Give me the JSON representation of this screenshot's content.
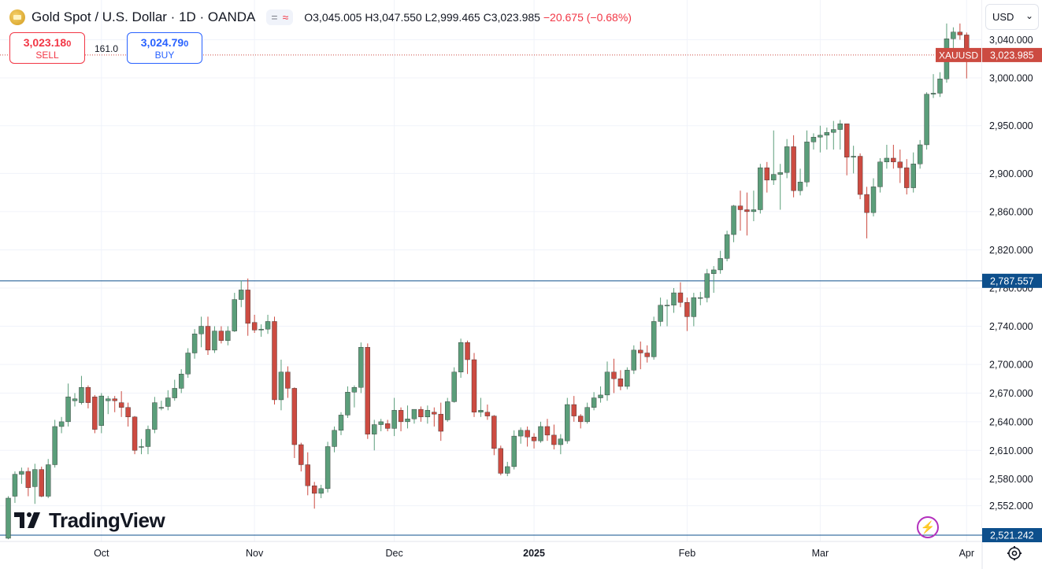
{
  "header": {
    "title": "Gold Spot / U.S. Dollar · 1D · OANDA",
    "pill_a": "=",
    "pill_b": "≈",
    "open": "O3,045.005",
    "high": "H3,047.550",
    "low": "L2,999.465",
    "close": "C3,023.985",
    "change": "−20.675 (−0.68%)"
  },
  "trade": {
    "sell_price_main": "3,023.18",
    "sell_price_small": "0",
    "sell_label": "SELL",
    "spread": "161.0",
    "buy_price_main": "3,024.79",
    "buy_price_small": "0",
    "buy_label": "BUY"
  },
  "currency": {
    "value": "USD",
    "chevron": "⌄"
  },
  "brand": {
    "name": "TradingView"
  },
  "icons": {
    "currency_chevron": "chevron-down-icon",
    "settings": "gear-icon",
    "flash": "lightning-icon",
    "symbol": "gold-bar-icon",
    "logo": "tradingview-logo"
  },
  "colors": {
    "up": "#5b9e7a",
    "down": "#cc4b41",
    "price_label": "#cc4b41",
    "hline": "#0d4f8c",
    "text": "#131722"
  },
  "chart_data": {
    "type": "candlestick",
    "symbol": "XAUUSD",
    "last_price": 3023.985,
    "last_price_label": "3,023.985",
    "ylim": [
      2521.242,
      3061
    ],
    "y_ticks": [
      2552,
      2580,
      2610,
      2640,
      2670,
      2700,
      2740,
      2780,
      2820,
      2860,
      2900,
      2950,
      3000,
      3040
    ],
    "y_tick_labels": [
      "2,552.000",
      "2,580.000",
      "2,610.000",
      "2,640.000",
      "2,670.000",
      "2,700.000",
      "2,740.000",
      "2,780.000",
      "2,820.000",
      "2,860.000",
      "2,900.000",
      "2,950.000",
      "3,000.000",
      "3,040.000"
    ],
    "x_labels": [
      {
        "label": "Oct",
        "index": 14,
        "bold": false
      },
      {
        "label": "Nov",
        "index": 37,
        "bold": false
      },
      {
        "label": "Dec",
        "index": 58,
        "bold": false
      },
      {
        "label": "2025",
        "index": 79,
        "bold": true
      },
      {
        "label": "Feb",
        "index": 102,
        "bold": false
      },
      {
        "label": "Mar",
        "index": 122,
        "bold": false
      },
      {
        "label": "Apr",
        "index": 144,
        "bold": false
      }
    ],
    "horizontal_lines": [
      {
        "value": 2787.557,
        "label": "2,787.557"
      },
      {
        "value": 2521.242,
        "label": "2,521.242"
      }
    ],
    "candles": [
      [
        2518,
        2562,
        2517,
        2560
      ],
      [
        2562,
        2588,
        2555,
        2585
      ],
      [
        2585,
        2592,
        2575,
        2588
      ],
      [
        2588,
        2592,
        2562,
        2571
      ],
      [
        2572,
        2596,
        2554,
        2590
      ],
      [
        2590,
        2593,
        2561,
        2562
      ],
      [
        2562,
        2601,
        2560,
        2595
      ],
      [
        2595,
        2642,
        2592,
        2635
      ],
      [
        2635,
        2645,
        2628,
        2640
      ],
      [
        2640,
        2680,
        2635,
        2666
      ],
      [
        2662,
        2670,
        2656,
        2664
      ],
      [
        2660,
        2688,
        2658,
        2676
      ],
      [
        2676,
        2678,
        2654,
        2660
      ],
      [
        2666,
        2668,
        2628,
        2632
      ],
      [
        2636,
        2670,
        2628,
        2667
      ],
      [
        2662,
        2667,
        2648,
        2664
      ],
      [
        2664,
        2667,
        2650,
        2662
      ],
      [
        2660,
        2672,
        2645,
        2655
      ],
      [
        2655,
        2660,
        2635,
        2645
      ],
      [
        2645,
        2646,
        2606,
        2610
      ],
      [
        2614,
        2622,
        2606,
        2614
      ],
      [
        2614,
        2636,
        2606,
        2632
      ],
      [
        2632,
        2666,
        2628,
        2660
      ],
      [
        2655,
        2662,
        2652,
        2655
      ],
      [
        2656,
        2673,
        2652,
        2665
      ],
      [
        2665,
        2684,
        2662,
        2675
      ],
      [
        2675,
        2695,
        2670,
        2690
      ],
      [
        2690,
        2717,
        2686,
        2712
      ],
      [
        2712,
        2737,
        2706,
        2732
      ],
      [
        2732,
        2750,
        2718,
        2740
      ],
      [
        2740,
        2750,
        2710,
        2715
      ],
      [
        2715,
        2740,
        2712,
        2735
      ],
      [
        2735,
        2740,
        2722,
        2725
      ],
      [
        2725,
        2740,
        2720,
        2735
      ],
      [
        2735,
        2775,
        2734,
        2768
      ],
      [
        2768,
        2788,
        2760,
        2778
      ],
      [
        2778,
        2790,
        2730,
        2743
      ],
      [
        2744,
        2752,
        2733,
        2736
      ],
      [
        2736,
        2742,
        2729,
        2737
      ],
      [
        2737,
        2752,
        2732,
        2745
      ],
      [
        2745,
        2750,
        2658,
        2663
      ],
      [
        2663,
        2705,
        2652,
        2692
      ],
      [
        2692,
        2698,
        2665,
        2675
      ],
      [
        2675,
        2676,
        2602,
        2616
      ],
      [
        2616,
        2618,
        2588,
        2595
      ],
      [
        2595,
        2608,
        2563,
        2573
      ],
      [
        2573,
        2577,
        2549,
        2565
      ],
      [
        2565,
        2574,
        2560,
        2570
      ],
      [
        2570,
        2619,
        2566,
        2614
      ],
      [
        2614,
        2635,
        2608,
        2631
      ],
      [
        2631,
        2650,
        2626,
        2647
      ],
      [
        2647,
        2677,
        2644,
        2671
      ],
      [
        2671,
        2678,
        2655,
        2676
      ],
      [
        2676,
        2723,
        2670,
        2718
      ],
      [
        2718,
        2722,
        2622,
        2627
      ],
      [
        2627,
        2642,
        2610,
        2637
      ],
      [
        2637,
        2643,
        2630,
        2640
      ],
      [
        2638,
        2642,
        2630,
        2633
      ],
      [
        2633,
        2665,
        2625,
        2652
      ],
      [
        2652,
        2655,
        2630,
        2640
      ],
      [
        2640,
        2657,
        2633,
        2643
      ],
      [
        2643,
        2650,
        2638,
        2653
      ],
      [
        2653,
        2656,
        2640,
        2645
      ],
      [
        2645,
        2657,
        2638,
        2652
      ],
      [
        2650,
        2655,
        2635,
        2648
      ],
      [
        2648,
        2660,
        2620,
        2630
      ],
      [
        2642,
        2665,
        2640,
        2661
      ],
      [
        2661,
        2697,
        2660,
        2692
      ],
      [
        2692,
        2727,
        2686,
        2723
      ],
      [
        2723,
        2725,
        2690,
        2705
      ],
      [
        2705,
        2712,
        2645,
        2650
      ],
      [
        2650,
        2665,
        2645,
        2652
      ],
      [
        2650,
        2658,
        2642,
        2646
      ],
      [
        2646,
        2647,
        2605,
        2612
      ],
      [
        2612,
        2615,
        2584,
        2586
      ],
      [
        2586,
        2598,
        2583,
        2593
      ],
      [
        2593,
        2631,
        2590,
        2625
      ],
      [
        2625,
        2634,
        2617,
        2631
      ],
      [
        2631,
        2635,
        2614,
        2624
      ],
      [
        2624,
        2628,
        2612,
        2620
      ],
      [
        2620,
        2640,
        2618,
        2635
      ],
      [
        2635,
        2643,
        2620,
        2626
      ],
      [
        2626,
        2637,
        2611,
        2616
      ],
      [
        2616,
        2627,
        2606,
        2622
      ],
      [
        2620,
        2665,
        2617,
        2658
      ],
      [
        2658,
        2667,
        2640,
        2646
      ],
      [
        2646,
        2648,
        2633,
        2640
      ],
      [
        2640,
        2660,
        2638,
        2655
      ],
      [
        2655,
        2671,
        2652,
        2665
      ],
      [
        2665,
        2677,
        2660,
        2668
      ],
      [
        2668,
        2703,
        2662,
        2692
      ],
      [
        2692,
        2706,
        2670,
        2685
      ],
      [
        2685,
        2694,
        2673,
        2677
      ],
      [
        2677,
        2697,
        2674,
        2694
      ],
      [
        2694,
        2720,
        2690,
        2715
      ],
      [
        2715,
        2724,
        2695,
        2712
      ],
      [
        2712,
        2720,
        2702,
        2708
      ],
      [
        2708,
        2750,
        2705,
        2745
      ],
      [
        2745,
        2770,
        2740,
        2762
      ],
      [
        2762,
        2768,
        2740,
        2762
      ],
      [
        2762,
        2780,
        2754,
        2775
      ],
      [
        2775,
        2786,
        2760,
        2765
      ],
      [
        2765,
        2770,
        2735,
        2750
      ],
      [
        2750,
        2775,
        2740,
        2770
      ],
      [
        2770,
        2776,
        2762,
        2770
      ],
      [
        2770,
        2800,
        2765,
        2795
      ],
      [
        2795,
        2803,
        2775,
        2799
      ],
      [
        2799,
        2819,
        2795,
        2811
      ],
      [
        2811,
        2840,
        2808,
        2836
      ],
      [
        2836,
        2867,
        2828,
        2866
      ],
      [
        2866,
        2882,
        2840,
        2862
      ],
      [
        2862,
        2880,
        2835,
        2860
      ],
      [
        2860,
        2882,
        2850,
        2862
      ],
      [
        2862,
        2910,
        2858,
        2906
      ],
      [
        2906,
        2912,
        2880,
        2893
      ],
      [
        2893,
        2945,
        2888,
        2899
      ],
      [
        2899,
        2910,
        2862,
        2901
      ],
      [
        2901,
        2936,
        2895,
        2928
      ],
      [
        2928,
        2940,
        2875,
        2882
      ],
      [
        2882,
        2905,
        2877,
        2891
      ],
      [
        2891,
        2945,
        2886,
        2933
      ],
      [
        2933,
        2942,
        2925,
        2938
      ],
      [
        2938,
        2950,
        2922,
        2940
      ],
      [
        2940,
        2948,
        2925,
        2943
      ],
      [
        2943,
        2955,
        2925,
        2946
      ],
      [
        2946,
        2956,
        2925,
        2952
      ],
      [
        2952,
        2952,
        2898,
        2917
      ],
      [
        2917,
        2929,
        2900,
        2918
      ],
      [
        2918,
        2921,
        2873,
        2878
      ],
      [
        2878,
        2886,
        2832,
        2859
      ],
      [
        2859,
        2895,
        2855,
        2886
      ],
      [
        2886,
        2916,
        2880,
        2912
      ],
      [
        2912,
        2930,
        2905,
        2916
      ],
      [
        2916,
        2930,
        2905,
        2912
      ],
      [
        2912,
        2925,
        2890,
        2906
      ],
      [
        2906,
        2915,
        2878,
        2885
      ],
      [
        2885,
        2922,
        2880,
        2910
      ],
      [
        2910,
        2935,
        2905,
        2930
      ],
      [
        2930,
        2985,
        2925,
        2983
      ],
      [
        2983,
        3004,
        2979,
        2984
      ],
      [
        2984,
        3006,
        2980,
        2999
      ],
      [
        2999,
        3057,
        2995,
        3041
      ],
      [
        3041,
        3053,
        3030,
        3048
      ],
      [
        3048,
        3057,
        3040,
        3045
      ],
      [
        3045,
        3047.55,
        2999.465,
        3023.985
      ]
    ]
  }
}
